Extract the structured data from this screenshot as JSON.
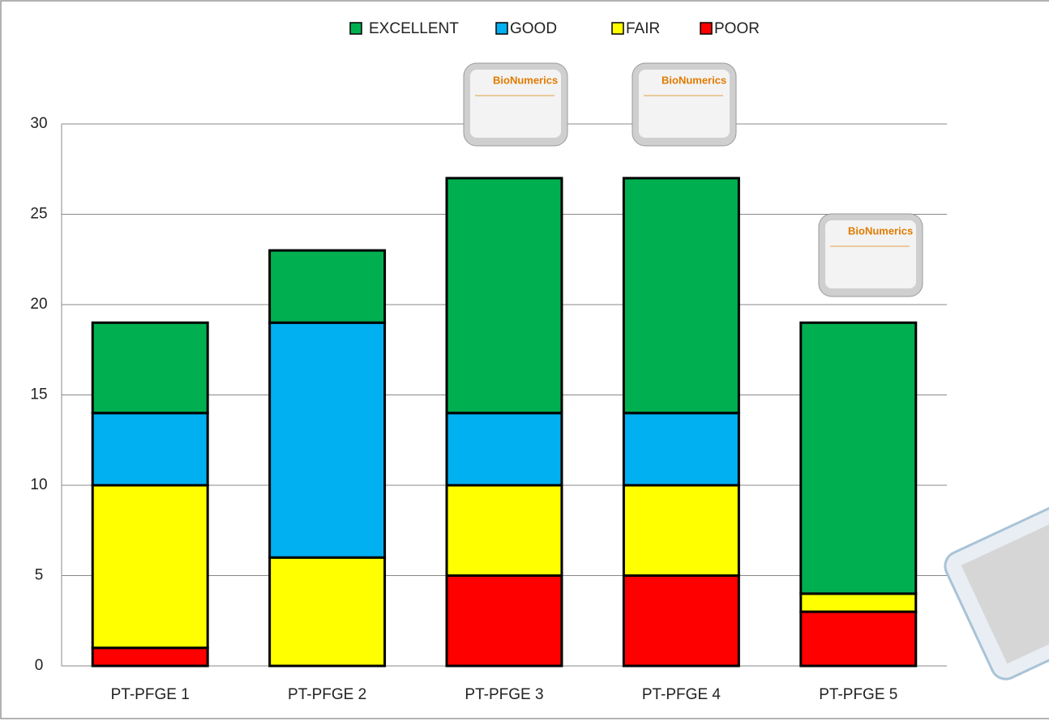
{
  "chart_data": {
    "type": "stacked_bar",
    "categories": [
      "PT-PFGE 1",
      "PT-PFGE 2",
      "PT-PFGE 3",
      "PT-PFGE 4",
      "PT-PFGE 5"
    ],
    "series": [
      {
        "name": "POOR",
        "color": "#ff0000",
        "values": [
          1,
          0,
          5,
          5,
          3
        ]
      },
      {
        "name": "FAIR",
        "color": "#ffff00",
        "values": [
          9,
          6,
          5,
          5,
          1
        ]
      },
      {
        "name": "GOOD",
        "color": "#00b0f0",
        "values": [
          4,
          13,
          4,
          4,
          0
        ]
      },
      {
        "name": "EXCELLENT",
        "color": "#00b050",
        "values": [
          5,
          4,
          13,
          13,
          15
        ]
      }
    ],
    "ylim": [
      0,
      30
    ],
    "yticks": [
      0,
      5,
      10,
      15,
      20,
      25,
      30
    ],
    "grid": true,
    "legend": "top",
    "image_label": "BioNumerics"
  }
}
